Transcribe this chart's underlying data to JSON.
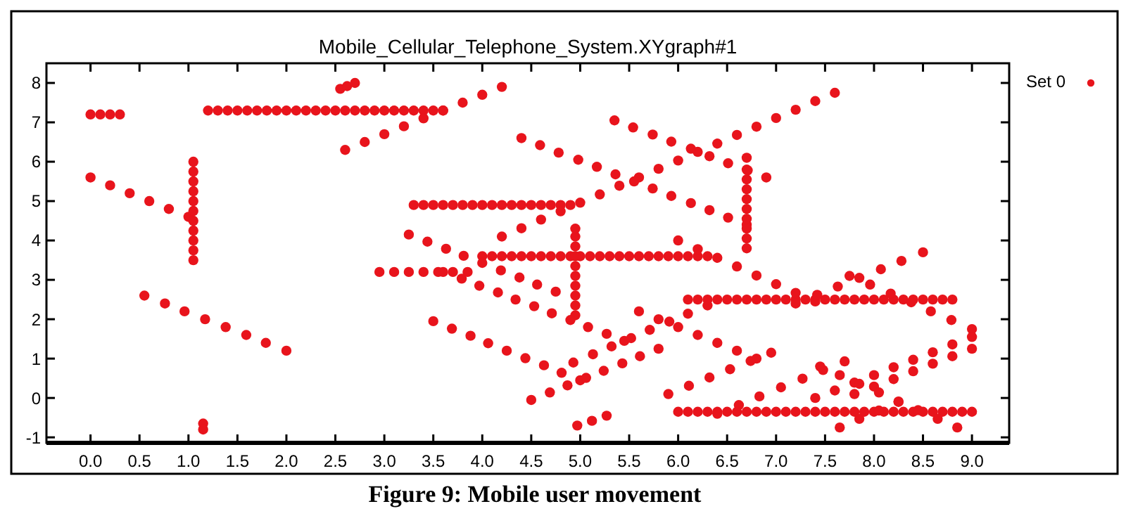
{
  "chart_data": {
    "type": "scatter",
    "title": "Mobile_Cellular_Telephone_System.XYgraph#1",
    "annotations": [
      "Figure 9: Mobile user movement"
    ],
    "legend": "top right",
    "marker": "circle",
    "grid": false,
    "xlim": [
      -0.45,
      9.38
    ],
    "ylim": [
      -1.14,
      8.5
    ],
    "xticks": [
      {
        "value": 0,
        "label": "0.0"
      },
      {
        "value": 0.5,
        "label": "0.5"
      },
      {
        "value": 1,
        "label": "1.0"
      },
      {
        "value": 1.5,
        "label": "1.5"
      },
      {
        "value": 2,
        "label": "2.0"
      },
      {
        "value": 2.5,
        "label": "2.5"
      },
      {
        "value": 3,
        "label": "3.0"
      },
      {
        "value": 3.5,
        "label": "3.5"
      },
      {
        "value": 4,
        "label": "4.0"
      },
      {
        "value": 4.5,
        "label": "4.5"
      },
      {
        "value": 5,
        "label": "5.0"
      },
      {
        "value": 5.5,
        "label": "5.5"
      },
      {
        "value": 6,
        "label": "6.0"
      },
      {
        "value": 6.5,
        "label": "6.5"
      },
      {
        "value": 7,
        "label": "7.0"
      },
      {
        "value": 7.5,
        "label": "7.5"
      },
      {
        "value": 8,
        "label": "8.0"
      },
      {
        "value": 8.5,
        "label": "8.5"
      },
      {
        "value": 9,
        "label": "9.0"
      }
    ],
    "yticks": [
      -1,
      0,
      1,
      2,
      3,
      4,
      5,
      6,
      7,
      8
    ],
    "series": [
      {
        "name": "Set 0",
        "color": "#e8141c",
        "x": [
          0,
          0.1,
          0.2,
          0.3,
          0,
          0.2,
          0.4,
          0.6,
          0.8,
          1.0,
          1.05,
          1.05,
          1.05,
          1.05,
          1.05,
          1.05,
          1.05,
          1.05,
          1.05,
          1.05,
          1.05,
          0.55,
          0.76,
          0.96,
          1.17,
          1.38,
          1.59,
          1.79,
          2.0,
          1.15,
          1.15,
          1.2,
          1.3,
          1.4,
          1.5,
          1.6,
          1.7,
          1.8,
          1.9,
          2.0,
          2.1,
          2.2,
          2.3,
          2.4,
          2.5,
          2.6,
          2.7,
          2.8,
          2.9,
          3.0,
          3.1,
          3.2,
          3.3,
          3.4,
          3.5,
          3.6,
          2.55,
          2.62,
          2.7,
          2.6,
          2.8,
          3.0,
          3.2,
          3.4,
          3.6,
          3.8,
          4.0,
          4.2,
          3.3,
          3.4,
          3.5,
          3.6,
          3.7,
          3.8,
          3.9,
          4.0,
          4.1,
          4.2,
          4.3,
          4.4,
          4.5,
          4.6,
          4.7,
          4.8,
          4.9,
          4.2,
          4.4,
          4.6,
          4.8,
          5.0,
          5.2,
          5.4,
          5.6,
          5.8,
          6.0,
          6.2,
          6.4,
          6.6,
          6.8,
          7.0,
          7.2,
          7.4,
          7.6,
          4.4,
          4.59,
          4.78,
          4.98,
          5.17,
          5.36,
          5.55,
          5.74,
          5.93,
          6.13,
          6.32,
          6.51,
          6.7,
          5.35,
          5.54,
          5.74,
          5.93,
          6.13,
          6.32,
          6.51,
          6.71,
          6.9,
          6.7,
          6.7,
          6.7,
          6.7,
          6.7,
          6.7,
          6.7,
          6.7,
          6.7,
          6.7,
          4.0,
          4.1,
          4.2,
          4.3,
          4.4,
          4.5,
          4.6,
          4.7,
          4.8,
          4.9,
          5.0,
          5.1,
          5.2,
          5.3,
          5.4,
          5.5,
          5.6,
          5.7,
          5.8,
          5.9,
          6.0,
          6.1,
          6.2,
          6.3,
          4.95,
          4.95,
          4.95,
          4.95,
          4.95,
          4.95,
          4.95,
          4.95,
          4.95,
          4.95,
          2.95,
          3.1,
          3.25,
          3.4,
          3.55,
          3.7,
          3.85,
          3.25,
          3.44,
          3.63,
          3.81,
          4.0,
          4.19,
          4.38,
          4.56,
          4.75,
          3.6,
          3.79,
          3.97,
          4.16,
          4.34,
          4.53,
          4.71,
          4.9,
          5.08,
          5.27,
          5.45,
          4.93,
          5.13,
          5.32,
          5.52,
          5.71,
          5.91,
          6.1,
          6.3,
          3.5,
          3.69,
          3.88,
          4.06,
          4.25,
          4.44,
          4.63,
          4.81,
          5.0,
          4.5,
          4.69,
          4.87,
          5.06,
          5.24,
          5.43,
          5.61,
          5.8,
          4.97,
          5.12,
          5.27,
          5.6,
          5.8,
          6.0,
          6.2,
          6.4,
          6.6,
          6.8,
          5.9,
          6.11,
          6.32,
          6.53,
          6.74,
          6.95,
          6.1,
          6.2,
          6.3,
          6.4,
          6.5,
          6.6,
          6.7,
          6.8,
          6.9,
          7.0,
          7.1,
          7.2,
          7.3,
          7.4,
          7.5,
          7.6,
          7.7,
          7.8,
          7.9,
          8.0,
          8.1,
          8.2,
          8.3,
          8.4,
          8.5,
          8.6,
          8.7,
          8.8,
          6.0,
          6.1,
          6.2,
          6.3,
          6.4,
          6.5,
          6.6,
          6.7,
          6.8,
          6.9,
          7.0,
          7.1,
          7.2,
          7.3,
          7.4,
          7.5,
          7.6,
          7.7,
          7.8,
          7.9,
          8.0,
          8.1,
          8.2,
          8.3,
          8.4,
          8.5,
          8.6,
          8.7,
          8.8,
          8.9,
          9.0,
          6.0,
          6.2,
          6.4,
          6.6,
          6.8,
          7.0,
          7.2,
          7.4,
          7.75,
          7.96,
          8.17,
          8.38,
          8.58,
          8.79,
          9.0,
          7.2,
          7.42,
          7.63,
          7.85,
          8.07,
          8.28,
          8.5,
          6.4,
          6.62,
          6.83,
          7.05,
          7.27,
          7.48,
          7.7,
          7.4,
          7.6,
          7.8,
          8.0,
          8.2,
          8.4,
          8.6,
          8.8,
          9.0,
          7.8,
          8.0,
          8.2,
          8.4,
          8.6,
          8.8,
          9.0,
          7.65,
          7.85,
          8.05,
          8.25,
          7.45,
          7.65,
          7.85,
          8.05,
          8.25,
          8.45,
          8.65,
          8.85
        ],
        "values": [
          7.2,
          7.2,
          7.2,
          7.2,
          5.6,
          5.4,
          5.2,
          5.0,
          4.8,
          4.6,
          3.5,
          3.75,
          4.0,
          4.25,
          4.5,
          4.75,
          5.0,
          5.25,
          5.5,
          5.75,
          6.0,
          2.6,
          2.4,
          2.2,
          2.0,
          1.8,
          1.6,
          1.4,
          1.2,
          -0.65,
          -0.8,
          7.3,
          7.3,
          7.3,
          7.3,
          7.3,
          7.3,
          7.3,
          7.3,
          7.3,
          7.3,
          7.3,
          7.3,
          7.3,
          7.3,
          7.3,
          7.3,
          7.3,
          7.3,
          7.3,
          7.3,
          7.3,
          7.3,
          7.3,
          7.3,
          7.3,
          7.85,
          7.92,
          8.0,
          6.3,
          6.5,
          6.7,
          6.9,
          7.1,
          7.3,
          7.5,
          7.7,
          7.9,
          4.9,
          4.9,
          4.9,
          4.9,
          4.9,
          4.9,
          4.9,
          4.9,
          4.9,
          4.9,
          4.9,
          4.9,
          4.9,
          4.9,
          4.9,
          4.9,
          4.9,
          4.1,
          4.31,
          4.53,
          4.74,
          4.96,
          5.17,
          5.39,
          5.6,
          5.82,
          6.03,
          6.25,
          6.46,
          6.68,
          6.89,
          7.11,
          7.32,
          7.54,
          7.75,
          6.6,
          6.42,
          6.23,
          6.05,
          5.87,
          5.68,
          5.5,
          5.32,
          5.13,
          4.95,
          4.77,
          4.58,
          4.4,
          7.05,
          6.87,
          6.69,
          6.51,
          6.33,
          6.14,
          5.96,
          5.78,
          5.6,
          3.8,
          4.05,
          4.3,
          4.55,
          4.8,
          5.05,
          5.3,
          5.55,
          5.8,
          6.1,
          3.6,
          3.6,
          3.6,
          3.6,
          3.6,
          3.6,
          3.6,
          3.6,
          3.6,
          3.6,
          3.6,
          3.6,
          3.6,
          3.6,
          3.6,
          3.6,
          3.6,
          3.6,
          3.6,
          3.6,
          3.6,
          3.6,
          3.6,
          3.6,
          2.1,
          2.35,
          2.6,
          2.85,
          3.1,
          3.35,
          3.6,
          3.85,
          4.1,
          4.3,
          3.2,
          3.2,
          3.2,
          3.2,
          3.2,
          3.2,
          3.2,
          4.15,
          3.97,
          3.79,
          3.61,
          3.43,
          3.24,
          3.06,
          2.88,
          2.7,
          3.2,
          3.03,
          2.85,
          2.68,
          2.5,
          2.33,
          2.15,
          1.98,
          1.8,
          1.63,
          1.45,
          0.9,
          1.11,
          1.31,
          1.52,
          1.73,
          1.94,
          2.14,
          2.35,
          1.95,
          1.76,
          1.58,
          1.39,
          1.2,
          1.01,
          0.83,
          0.64,
          0.45,
          -0.05,
          0.14,
          0.32,
          0.51,
          0.69,
          0.88,
          1.06,
          1.25,
          -0.7,
          -0.58,
          -0.45,
          2.2,
          2.0,
          1.8,
          1.6,
          1.4,
          1.2,
          1.0,
          0.1,
          0.31,
          0.52,
          0.73,
          0.94,
          1.15,
          2.5,
          2.5,
          2.5,
          2.5,
          2.5,
          2.5,
          2.5,
          2.5,
          2.5,
          2.5,
          2.5,
          2.5,
          2.5,
          2.5,
          2.5,
          2.5,
          2.5,
          2.5,
          2.5,
          2.5,
          2.5,
          2.5,
          2.5,
          2.5,
          2.5,
          2.5,
          2.5,
          2.5,
          -0.35,
          -0.35,
          -0.35,
          -0.35,
          -0.35,
          -0.35,
          -0.35,
          -0.35,
          -0.35,
          -0.35,
          -0.35,
          -0.35,
          -0.35,
          -0.35,
          -0.35,
          -0.35,
          -0.35,
          -0.35,
          -0.35,
          -0.35,
          -0.35,
          -0.35,
          -0.35,
          -0.35,
          -0.35,
          -0.35,
          -0.35,
          -0.35,
          -0.35,
          -0.35,
          -0.35,
          4.0,
          3.78,
          3.56,
          3.34,
          3.11,
          2.89,
          2.67,
          2.45,
          3.1,
          2.88,
          2.65,
          2.43,
          2.2,
          1.98,
          1.75,
          2.4,
          2.62,
          2.83,
          3.05,
          3.27,
          3.48,
          3.7,
          -0.4,
          -0.18,
          0.04,
          0.27,
          0.49,
          0.71,
          0.93,
          0,
          0.19,
          0.39,
          0.58,
          0.78,
          0.97,
          1.16,
          1.36,
          1.55,
          0.1,
          0.29,
          0.48,
          0.68,
          0.87,
          1.06,
          1.25,
          -0.75,
          -0.53,
          -0.32,
          -0.1,
          0.8,
          0.58,
          0.36,
          0.14,
          -0.09,
          -0.31,
          -0.53,
          -0.75
        ]
      }
    ]
  }
}
